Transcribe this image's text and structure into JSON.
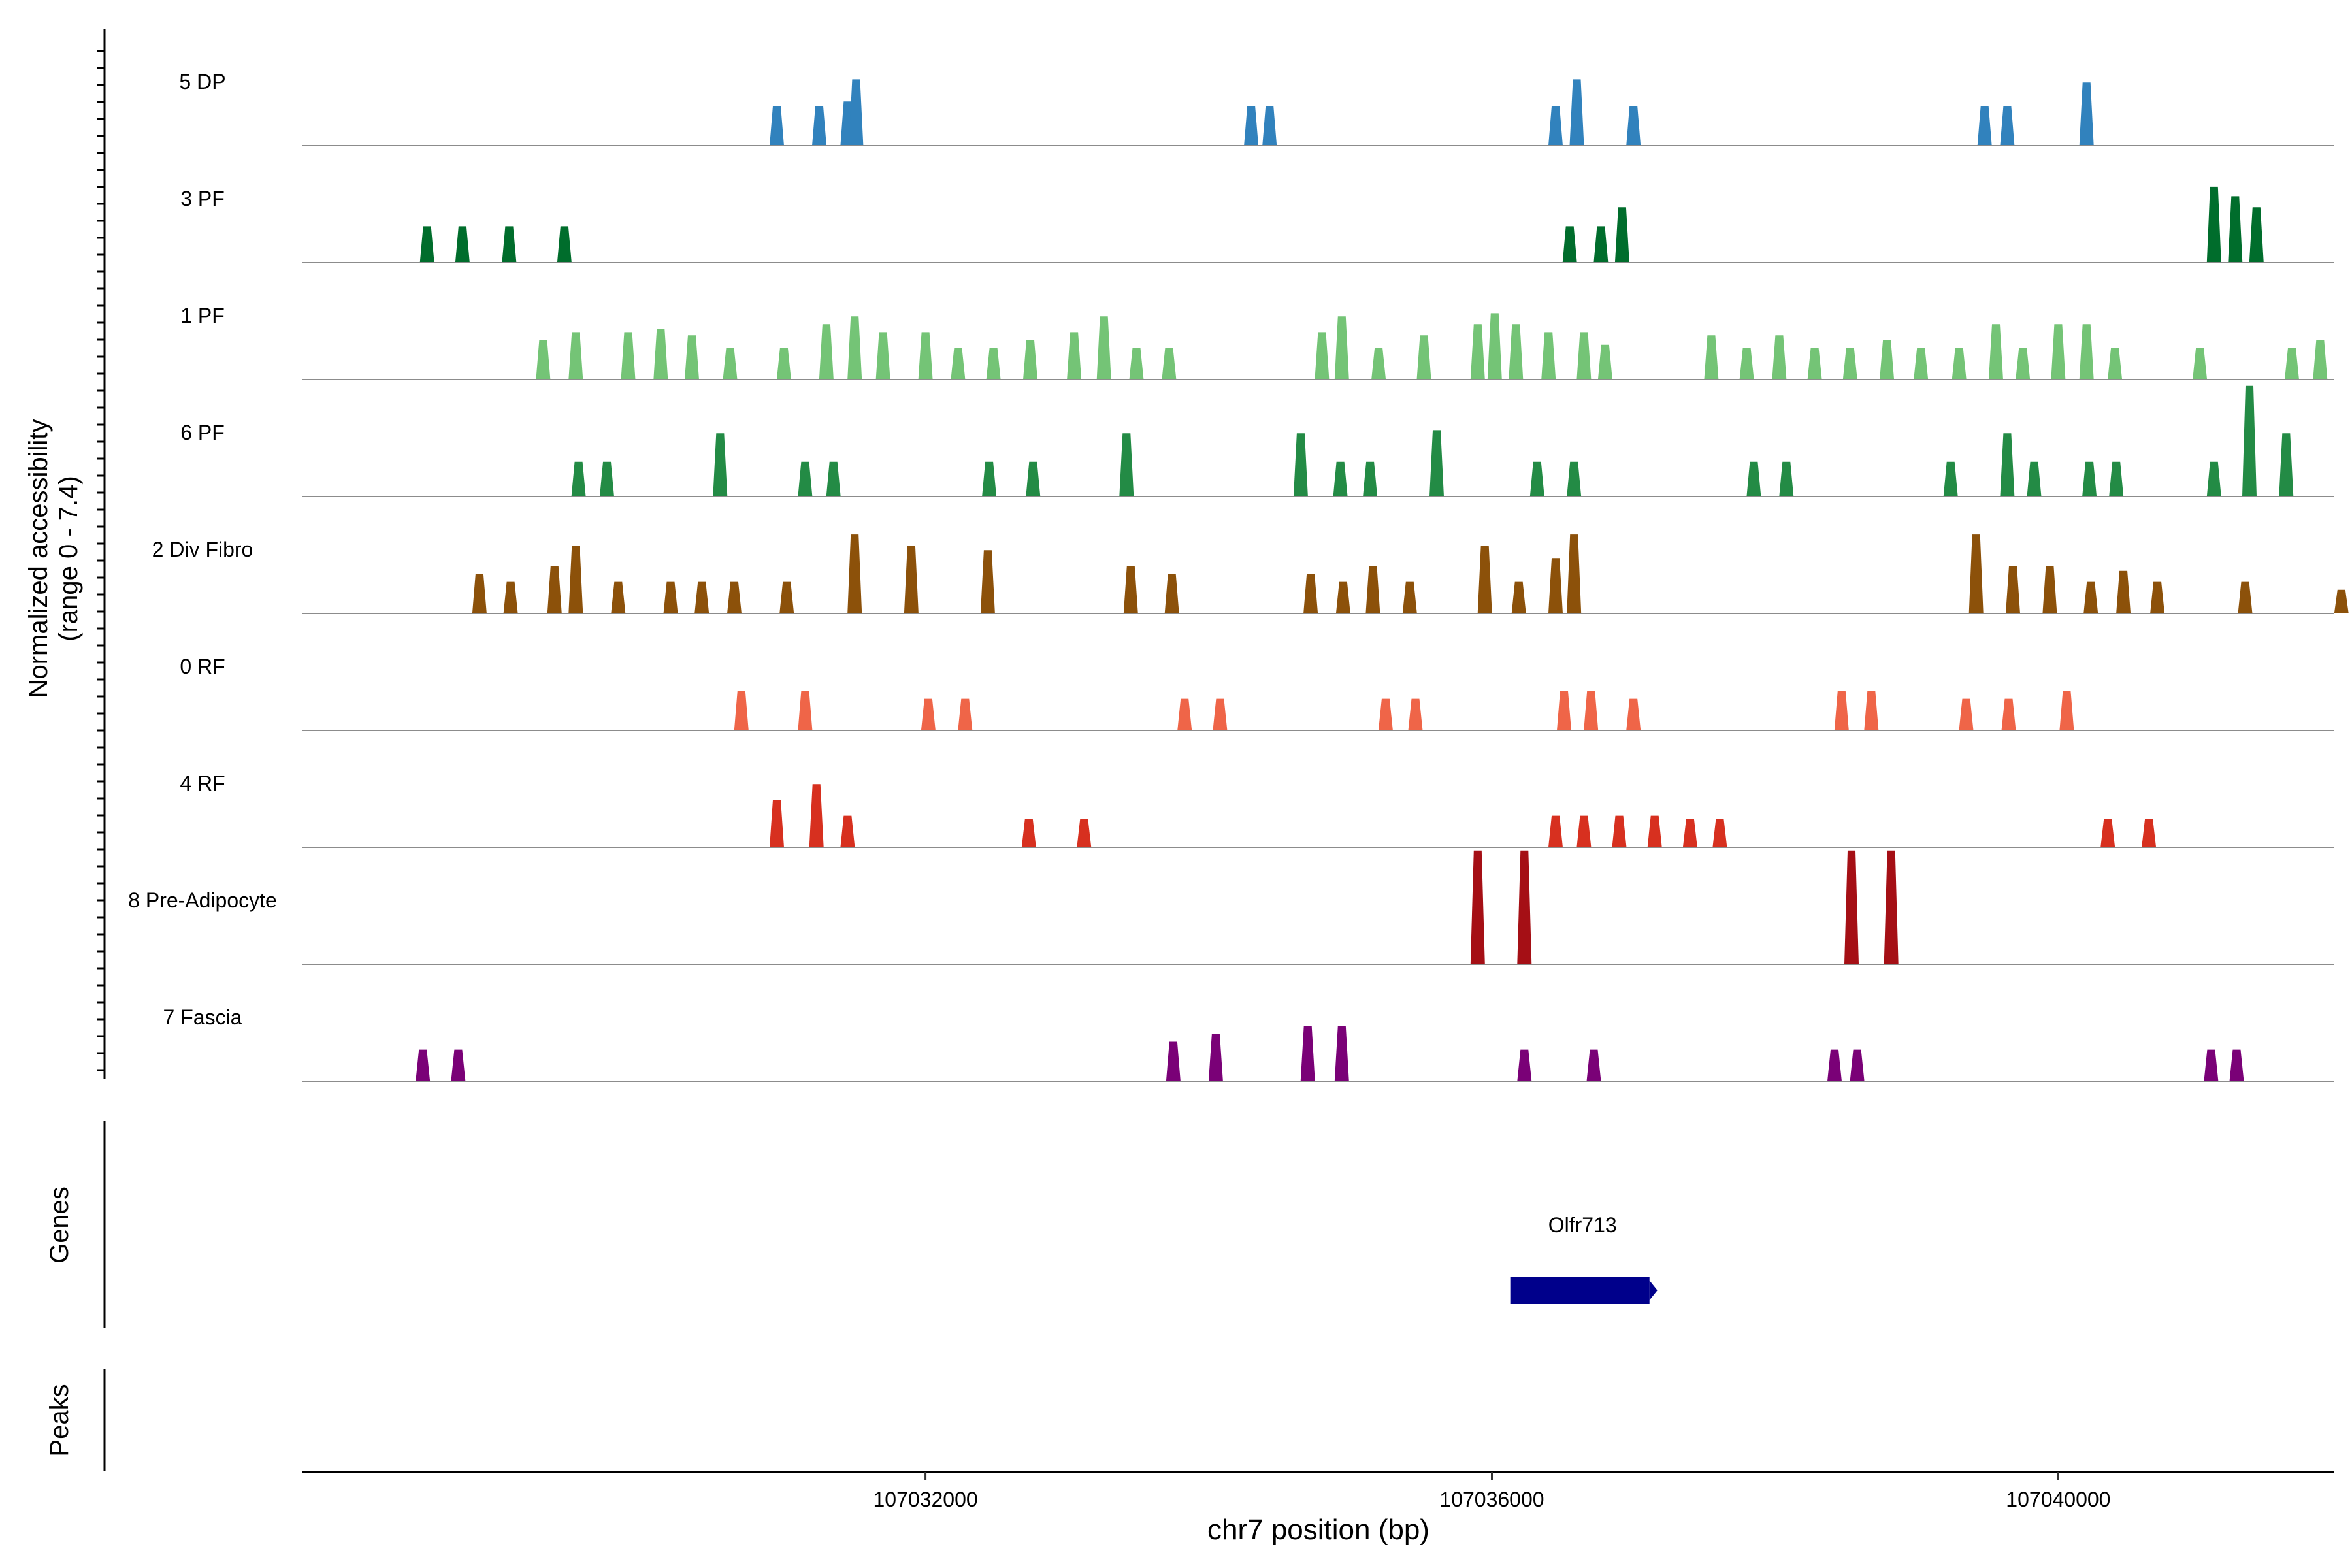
{
  "chart_data": {
    "type": "area",
    "title": "",
    "ylabel_line1": "Normalized accessibility",
    "ylabel_line2": "(range 0 - 7.4)",
    "xlabel": "chr7 position (bp)",
    "xlim": [
      107027600,
      107041950
    ],
    "ylim": [
      0,
      7.4
    ],
    "xticks": [
      {
        "value": 107032000,
        "label": "107032000"
      },
      {
        "value": 107036000,
        "label": "107036000"
      },
      {
        "value": 107040000,
        "label": "107040000"
      }
    ],
    "series": [
      {
        "name": "5 DP",
        "color": "#3182bd",
        "peaks": [
          [
            107030950,
            2.5
          ],
          [
            107031250,
            2.5
          ],
          [
            107031450,
            2.8
          ],
          [
            107031510,
            4.2
          ],
          [
            107034300,
            2.5
          ],
          [
            107034430,
            2.5
          ],
          [
            107036450,
            2.5
          ],
          [
            107036600,
            4.2
          ],
          [
            107037000,
            2.5
          ],
          [
            107039480,
            2.5
          ],
          [
            107039640,
            2.5
          ],
          [
            107040200,
            4.0
          ]
        ]
      },
      {
        "name": "3 PF",
        "color": "#006d2c",
        "peaks": [
          [
            107028480,
            2.3
          ],
          [
            107028730,
            2.3
          ],
          [
            107029060,
            2.3
          ],
          [
            107029450,
            2.3
          ],
          [
            107036550,
            2.3
          ],
          [
            107036770,
            2.3
          ],
          [
            107036920,
            3.5
          ],
          [
            107041100,
            4.8
          ],
          [
            107041250,
            4.2
          ],
          [
            107041400,
            3.5
          ]
        ]
      },
      {
        "name": "1 PF",
        "color": "#74c476",
        "peaks": [
          [
            107029300,
            2.5
          ],
          [
            107029530,
            3.0
          ],
          [
            107029900,
            3.0
          ],
          [
            107030130,
            3.2
          ],
          [
            107030350,
            2.8
          ],
          [
            107030620,
            2.0
          ],
          [
            107031000,
            2.0
          ],
          [
            107031300,
            3.5
          ],
          [
            107031500,
            4.0
          ],
          [
            107031700,
            3.0
          ],
          [
            107032000,
            3.0
          ],
          [
            107032230,
            2.0
          ],
          [
            107032480,
            2.0
          ],
          [
            107032740,
            2.5
          ],
          [
            107033050,
            3.0
          ],
          [
            107033260,
            4.0
          ],
          [
            107033490,
            2.0
          ],
          [
            107033720,
            2.0
          ],
          [
            107034800,
            3.0
          ],
          [
            107034940,
            4.0
          ],
          [
            107035200,
            2.0
          ],
          [
            107035520,
            2.8
          ],
          [
            107035900,
            3.5
          ],
          [
            107036020,
            4.2
          ],
          [
            107036170,
            3.5
          ],
          [
            107036400,
            3.0
          ],
          [
            107036650,
            3.0
          ],
          [
            107036800,
            2.2
          ],
          [
            107037550,
            2.8
          ],
          [
            107037800,
            2.0
          ],
          [
            107038030,
            2.8
          ],
          [
            107038280,
            2.0
          ],
          [
            107038530,
            2.0
          ],
          [
            107038790,
            2.5
          ],
          [
            107039030,
            2.0
          ],
          [
            107039300,
            2.0
          ],
          [
            107039560,
            3.5
          ],
          [
            107039750,
            2.0
          ],
          [
            107040000,
            3.5
          ],
          [
            107040200,
            3.5
          ],
          [
            107040400,
            2.0
          ],
          [
            107041000,
            2.0
          ],
          [
            107041650,
            2.0
          ],
          [
            107041850,
            2.5
          ]
        ]
      },
      {
        "name": "6 PF",
        "color": "#238b45",
        "peaks": [
          [
            107029550,
            2.2
          ],
          [
            107029750,
            2.2
          ],
          [
            107030550,
            4.0
          ],
          [
            107031150,
            2.2
          ],
          [
            107031350,
            2.2
          ],
          [
            107032450,
            2.2
          ],
          [
            107032760,
            2.2
          ],
          [
            107033420,
            4.0
          ],
          [
            107034650,
            4.0
          ],
          [
            107034930,
            2.2
          ],
          [
            107035140,
            2.2
          ],
          [
            107035610,
            4.2
          ],
          [
            107036320,
            2.2
          ],
          [
            107036580,
            2.2
          ],
          [
            107037850,
            2.2
          ],
          [
            107038080,
            2.2
          ],
          [
            107039240,
            2.2
          ],
          [
            107039640,
            4.0
          ],
          [
            107039830,
            2.2
          ],
          [
            107040220,
            2.2
          ],
          [
            107040410,
            2.2
          ],
          [
            107041100,
            2.2
          ],
          [
            107041350,
            7.0
          ],
          [
            107041610,
            4.0
          ]
        ]
      },
      {
        "name": "2 Div Fibro",
        "color": "#8c510a",
        "peaks": [
          [
            107028850,
            2.5
          ],
          [
            107029070,
            2.0
          ],
          [
            107029380,
            3.0
          ],
          [
            107029530,
            4.3
          ],
          [
            107029830,
            2.0
          ],
          [
            107030200,
            2.0
          ],
          [
            107030420,
            2.0
          ],
          [
            107030650,
            2.0
          ],
          [
            107031020,
            2.0
          ],
          [
            107031500,
            5.0
          ],
          [
            107031900,
            4.3
          ],
          [
            107032440,
            4.0
          ],
          [
            107033450,
            3.0
          ],
          [
            107033740,
            2.5
          ],
          [
            107034720,
            2.5
          ],
          [
            107034950,
            2.0
          ],
          [
            107035160,
            3.0
          ],
          [
            107035420,
            2.0
          ],
          [
            107035950,
            4.3
          ],
          [
            107036190,
            2.0
          ],
          [
            107036450,
            3.5
          ],
          [
            107036580,
            5.0
          ],
          [
            107039420,
            5.0
          ],
          [
            107039680,
            3.0
          ],
          [
            107039940,
            3.0
          ],
          [
            107040230,
            2.0
          ],
          [
            107040460,
            2.7
          ],
          [
            107040700,
            2.0
          ],
          [
            107041320,
            2.0
          ],
          [
            107042000,
            1.5
          ]
        ]
      },
      {
        "name": "0 RF",
        "color": "#ef6548",
        "peaks": [
          [
            107030700,
            2.5
          ],
          [
            107031150,
            2.5
          ],
          [
            107032020,
            2.0
          ],
          [
            107032280,
            2.0
          ],
          [
            107033830,
            2.0
          ],
          [
            107034080,
            2.0
          ],
          [
            107035250,
            2.0
          ],
          [
            107035460,
            2.0
          ],
          [
            107036510,
            2.5
          ],
          [
            107036700,
            2.5
          ],
          [
            107037000,
            2.0
          ],
          [
            107038470,
            2.5
          ],
          [
            107038680,
            2.5
          ],
          [
            107039350,
            2.0
          ],
          [
            107039650,
            2.0
          ],
          [
            107040060,
            2.5
          ]
        ]
      },
      {
        "name": "4 RF",
        "color": "#d7301f",
        "peaks": [
          [
            107030950,
            3.0
          ],
          [
            107031230,
            4.0
          ],
          [
            107031450,
            2.0
          ],
          [
            107032730,
            1.8
          ],
          [
            107033120,
            1.8
          ],
          [
            107036450,
            2.0
          ],
          [
            107036650,
            2.0
          ],
          [
            107036900,
            2.0
          ],
          [
            107037150,
            2.0
          ],
          [
            107037400,
            1.8
          ],
          [
            107037610,
            1.8
          ],
          [
            107040350,
            1.8
          ],
          [
            107040640,
            1.8
          ]
        ]
      },
      {
        "name": "8 Pre-Adipocyte",
        "color": "#a50f15",
        "peaks": [
          [
            107035900,
            7.2
          ],
          [
            107036230,
            7.2
          ],
          [
            107038540,
            7.2
          ],
          [
            107038820,
            7.2
          ]
        ]
      },
      {
        "name": "7 Fascia",
        "color": "#7a0177",
        "peaks": [
          [
            107028450,
            2.0
          ],
          [
            107028700,
            2.0
          ],
          [
            107033750,
            2.5
          ],
          [
            107034050,
            3.0
          ],
          [
            107034700,
            3.5
          ],
          [
            107034940,
            3.5
          ],
          [
            107036230,
            2.0
          ],
          [
            107036720,
            2.0
          ],
          [
            107038420,
            2.0
          ],
          [
            107038580,
            2.0
          ],
          [
            107041080,
            2.0
          ],
          [
            107041260,
            2.0
          ]
        ]
      }
    ],
    "genes_label": "Genes",
    "peaks_label": "Peaks",
    "gene": {
      "name": "Olfr713",
      "start": 107036130,
      "end": 107037150,
      "color": "#00008b"
    }
  }
}
